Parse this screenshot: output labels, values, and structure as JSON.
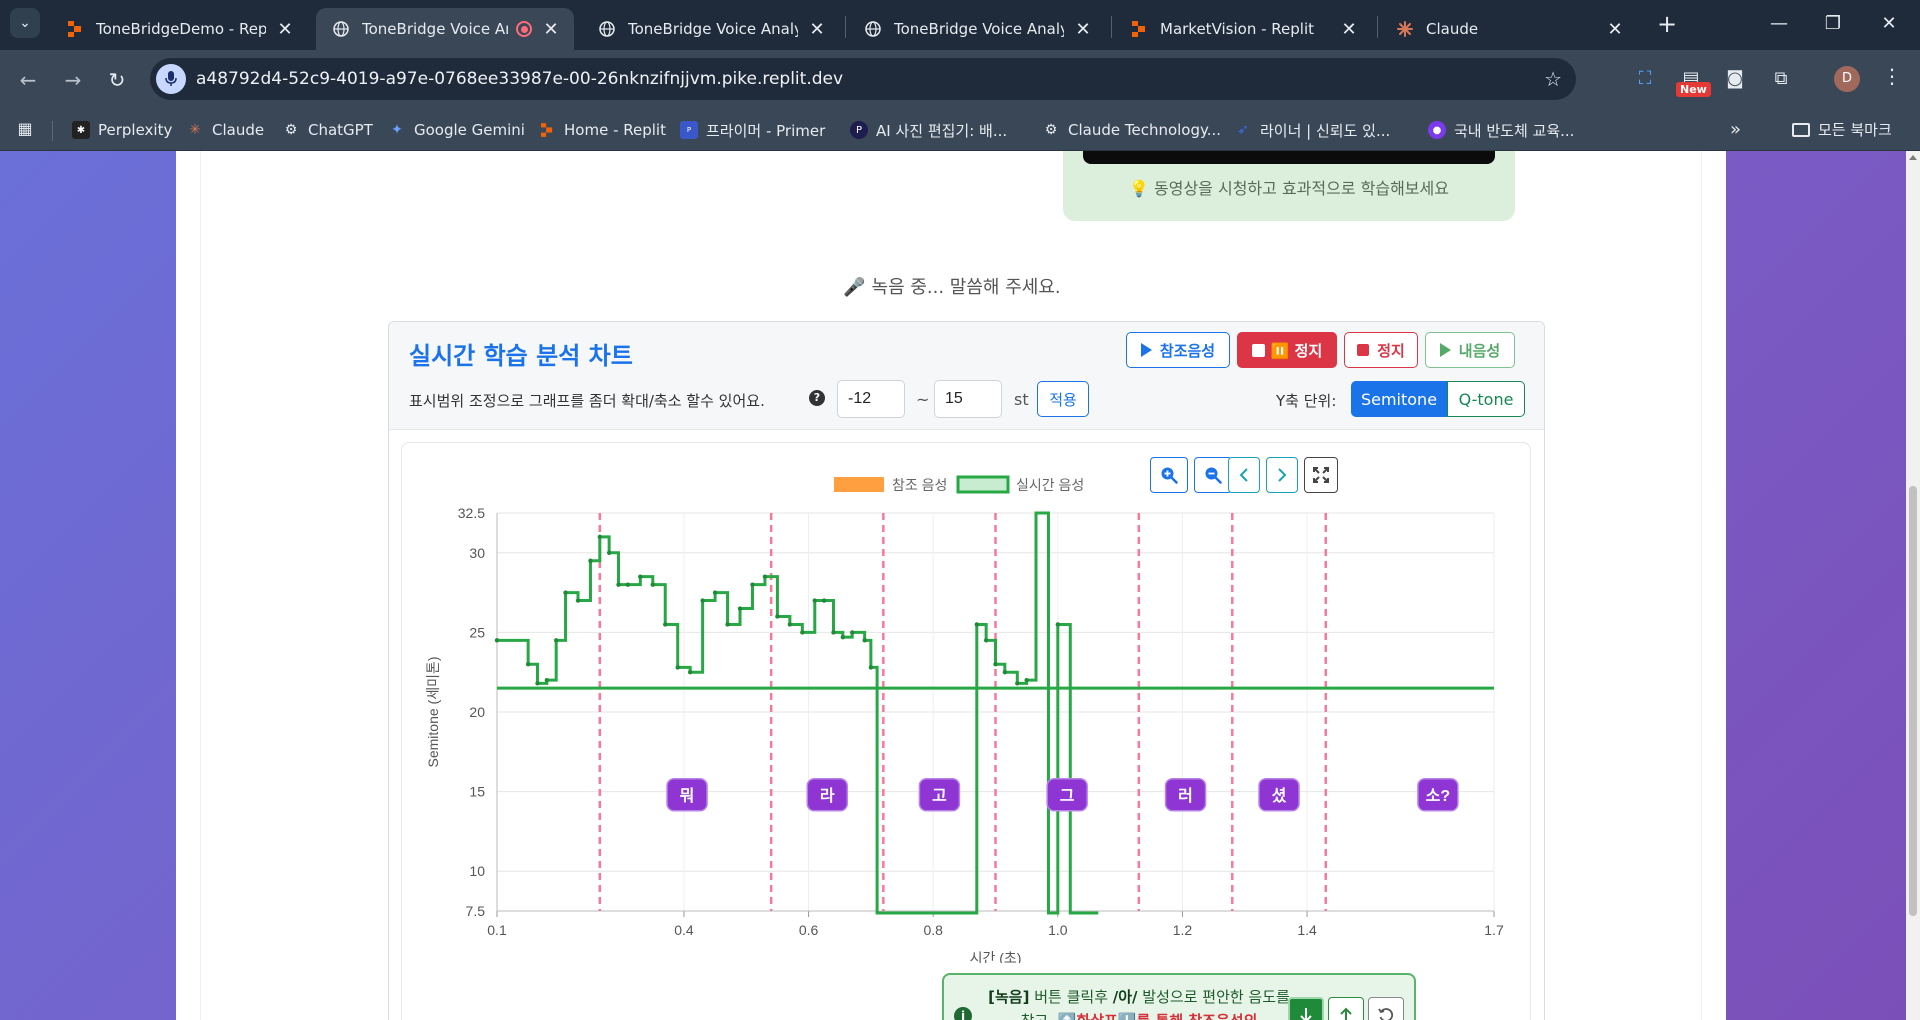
{
  "browser": {
    "tabs": [
      {
        "title": "ToneBridgeDemo - Replit",
        "icon": "replit-icon"
      },
      {
        "title": "ToneBridge Voice Anal",
        "icon": "globe-icon",
        "recording": true
      },
      {
        "title": "ToneBridge Voice Analysis",
        "icon": "globe-icon"
      },
      {
        "title": "ToneBridge Voice Analysis",
        "icon": "globe-icon"
      },
      {
        "title": "MarketVision - Replit",
        "icon": "replit-icon"
      },
      {
        "title": "Claude",
        "icon": "claude-icon"
      }
    ],
    "url": "a48792d4-52c9-4019-a97e-0768ee33987e-00-26nknzifnjjvm.pike.replit.dev",
    "new_badge": "New",
    "profile_initial": "D",
    "bookmarks": [
      {
        "label": "Perplexity",
        "color": "#222222"
      },
      {
        "label": "Claude",
        "color": "#d97757"
      },
      {
        "label": "ChatGPT",
        "color": "#5a6570"
      },
      {
        "label": "Google Gemini",
        "color": "#4a7cf0"
      },
      {
        "label": "Home - Replit",
        "color": "#f26207"
      },
      {
        "label": "프라이머 - Primer",
        "color": "#3a58c9"
      },
      {
        "label": "AI 사진 편집기: 배...",
        "color": "#1d1d4e"
      },
      {
        "label": "Claude Technology...",
        "color": "#444444"
      },
      {
        "label": "라이너 | 신뢰도 있...",
        "color": "#3b6cf0"
      },
      {
        "label": "국내 반도체 교육...",
        "color": "#7c3aed"
      }
    ],
    "bookmark_folder": "모든 북마크"
  },
  "page": {
    "video_hint": "💡 동영상을 시청하고 효과적으로 학습해보세요",
    "recording_status": "🎤 녹음 중... 말씀해 주세요."
  },
  "panel": {
    "title": "실시간 학습 분석 차트",
    "buttons": {
      "reference": "참조음성",
      "pause": "⏸️ 정지",
      "stop": "정지",
      "my_voice": "내음성"
    },
    "range_text": "표시범위 조정으로 그래프를 좀더 확대/축소 할수 있어요.",
    "range_min": "-12",
    "range_sep": "~",
    "range_max": "15",
    "range_unit": "st",
    "apply": "적용",
    "y_unit_label": "Y축 단위:",
    "y_units": [
      "Semitone",
      "Q-tone"
    ]
  },
  "hint": {
    "part1": "[녹음]",
    "part2": " 버튼 클릭후 ",
    "part3": "/아/",
    "part4": " 발성으로 편안한 음도를 찾고, ",
    "part5": "⬆️화살표⬇️를 통해 참조음성의"
  },
  "chart_data": {
    "type": "line",
    "legend": [
      {
        "name": "참조 음성",
        "color": "#ff9f40"
      },
      {
        "name": "실시간 음성",
        "color": "#28a745"
      }
    ],
    "legend_position": "top",
    "xlabel": "시간 (초)",
    "ylabel": "Semitone (세미톤)",
    "xlim": [
      0.1,
      1.7
    ],
    "ylim": [
      7.5,
      32.5
    ],
    "x_ticks": [
      "0.1",
      "0.4",
      "0.6",
      "0.8",
      "1.0",
      "1.2",
      "1.4",
      "1.7"
    ],
    "y_ticks": [
      "7.5",
      "10",
      "15",
      "20",
      "25",
      "30",
      "32.5"
    ],
    "grid": true,
    "reference_line": {
      "y": 21.5,
      "color": "#28a745"
    },
    "syllable_boundaries": [
      0.265,
      0.54,
      0.72,
      0.9,
      1.13,
      1.28,
      1.43
    ],
    "syllables": [
      {
        "label": "뭐",
        "x": 0.405
      },
      {
        "label": "라",
        "x": 0.63
      },
      {
        "label": "고",
        "x": 0.81
      },
      {
        "label": "그",
        "x": 1.015
      },
      {
        "label": "러",
        "x": 1.205
      },
      {
        "label": "셨",
        "x": 1.355
      },
      {
        "label": "소?",
        "x": 1.61
      }
    ],
    "series": [
      {
        "name": "실시간 음성",
        "x": [
          0.1,
          0.15,
          0.165,
          0.18,
          0.195,
          0.21,
          0.23,
          0.25,
          0.265,
          0.28,
          0.295,
          0.31,
          0.33,
          0.35,
          0.37,
          0.39,
          0.41,
          0.43,
          0.45,
          0.47,
          0.49,
          0.51,
          0.53,
          0.55,
          0.57,
          0.59,
          0.61,
          0.625,
          0.64,
          0.655,
          0.67,
          0.69,
          0.7,
          0.71,
          0.72,
          0.87,
          0.885,
          0.9,
          0.915,
          0.935,
          0.95,
          0.965,
          0.985,
          1.0,
          1.02,
          1.035,
          1.05,
          1.065
        ],
        "y": [
          24.5,
          23,
          21.8,
          22,
          24.5,
          27.5,
          27,
          29.5,
          31,
          30,
          28,
          28,
          28.5,
          28,
          25.5,
          22.8,
          22.5,
          27,
          27.5,
          25.5,
          26.5,
          28,
          28.5,
          26,
          25.5,
          25,
          27,
          27,
          25,
          24.7,
          25,
          24.5,
          22.8,
          7,
          7,
          25.5,
          24.5,
          23,
          22.5,
          21.8,
          22,
          32.5,
          7,
          25.5,
          7,
          7,
          7,
          7
        ]
      }
    ]
  }
}
